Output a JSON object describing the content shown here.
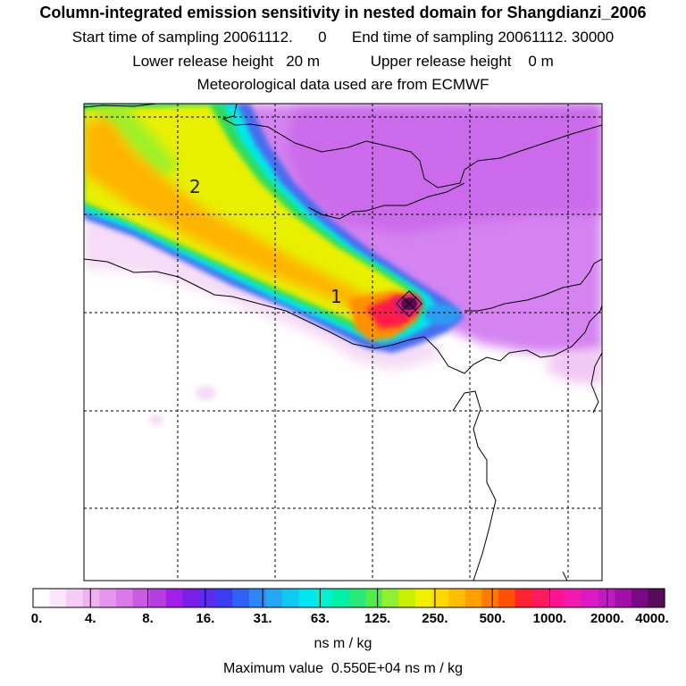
{
  "header": {
    "title": "Column-integrated emission sensitivity in nested domain for Shangdianzi_2006",
    "line2": "Start time of sampling 20061112.      0      End time of sampling 20061112. 30000",
    "line3": "Lower release height   20 m            Upper release height    0 m",
    "line4": "Meteorological data used are from ECMWF"
  },
  "map": {
    "plume_labels": [
      "2",
      "1"
    ],
    "station_marker": "release-location",
    "colors": {
      "very_low": "#f6dcf6",
      "low": "#c85ce6",
      "purple_bg": "#d483f0",
      "cyan": "#00f0f0",
      "blue": "#4a6cf0",
      "green": "#28dc60",
      "yellow": "#f0f000",
      "orange": "#ffb000",
      "red": "#ff1a4a",
      "dark": "#5a0a50"
    }
  },
  "colorbar": {
    "segments": [
      "#ffffff",
      "#fbe6fb",
      "#f5ccf5",
      "#eeb2ee",
      "#e496ee",
      "#d97ae8",
      "#c95ce2",
      "#b43ee0",
      "#a11fe6",
      "#7a1ee8",
      "#5a2cf0",
      "#3a3ef0",
      "#2f62f2",
      "#2d86f4",
      "#22a8f4",
      "#10c8f2",
      "#00e6f0",
      "#00f0d0",
      "#00f0a8",
      "#28e878",
      "#50ec48",
      "#8ef030",
      "#c8f000",
      "#f0f000",
      "#ffd800",
      "#ffbe00",
      "#ffa000",
      "#ff7a00",
      "#ff5000",
      "#ff2230",
      "#ff1a60",
      "#ff1490",
      "#f01ab0",
      "#dc1ac4",
      "#c01ac0",
      "#a010a8",
      "#7a0a84",
      "#5a0a5a"
    ],
    "tick_labels": [
      "0.",
      "4.",
      "8.",
      "16.",
      "31.",
      "63.",
      "125.",
      "250.",
      "500.",
      "1000.",
      "2000.",
      "4000."
    ],
    "unit": "ns m / kg"
  },
  "footer": {
    "max_value": "Maximum value  0.550E+04 ns m / kg"
  }
}
